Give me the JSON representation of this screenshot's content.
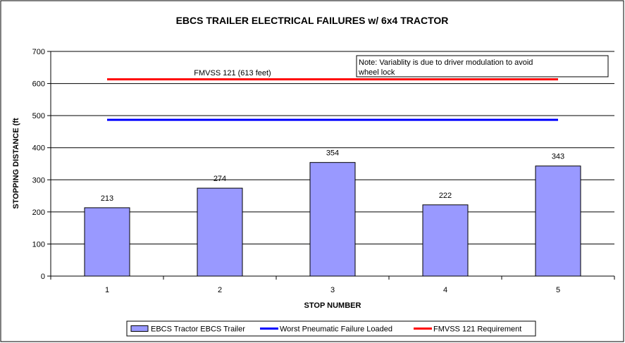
{
  "chart_data": {
    "type": "bar",
    "title": "EBCS TRAILER ELECTRICAL FAILURES w/ 6x4 TRACTOR",
    "xlabel": "STOP NUMBER",
    "ylabel": "STOPPING DISTANCE (ft",
    "categories": [
      "1",
      "2",
      "3",
      "4",
      "5"
    ],
    "ylim": [
      0,
      700
    ],
    "yticks": [
      0,
      100,
      200,
      300,
      400,
      500,
      600,
      700
    ],
    "grid": true,
    "legend_position": "bottom",
    "series": [
      {
        "name": "EBCS Tractor EBCS Trailer",
        "type": "bar",
        "color": "#9999ff",
        "values": [
          213,
          274,
          354,
          222,
          343
        ],
        "data_labels": [
          "213",
          "274",
          "354",
          "222",
          "343"
        ]
      },
      {
        "name": "Worst Pneumatic Failure Loaded",
        "type": "line",
        "color": "#0000ff",
        "value": 487
      },
      {
        "name": "FMVSS 121 Requirement",
        "type": "line",
        "color": "#ff0000",
        "value": 613
      }
    ],
    "annotations": {
      "fmvss_label": "FMVSS 121 (613 feet)",
      "note_line1": "Note: Variablity is due to driver modulation to avoid",
      "note_line2": "wheel lock"
    }
  }
}
